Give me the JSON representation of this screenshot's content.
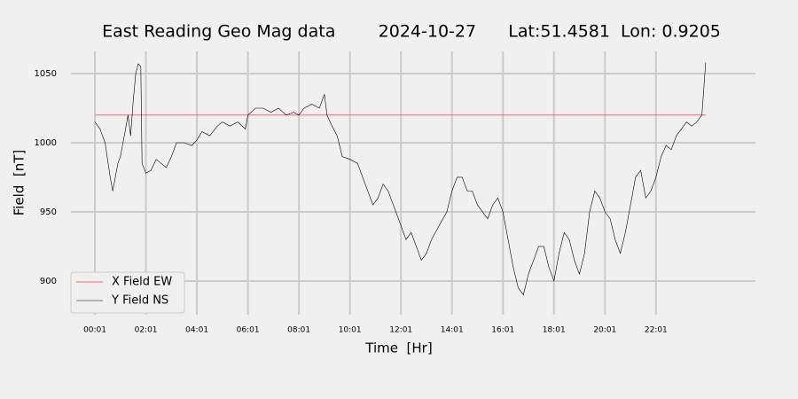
{
  "chart_data": {
    "type": "line",
    "title": "East Reading Geo Mag data        2024-10-27      Lat:51.4581  Lon: 0.9205",
    "xlabel": "Time  [Hr]",
    "ylabel": "Field  [nT]",
    "xlim": [
      -0.94,
      25.9
    ],
    "ylim": [
      875.6,
      1066
    ],
    "xticks": [
      {
        "value": 0,
        "label": "00:01"
      },
      {
        "value": 2,
        "label": "02:01"
      },
      {
        "value": 4,
        "label": "04:01"
      },
      {
        "value": 6,
        "label": "06:01"
      },
      {
        "value": 8,
        "label": "08:01"
      },
      {
        "value": 10,
        "label": "10:01"
      },
      {
        "value": 12,
        "label": "12:01"
      },
      {
        "value": 14,
        "label": "14:01"
      },
      {
        "value": 16,
        "label": "16:01"
      },
      {
        "value": 18,
        "label": "18:01"
      },
      {
        "value": 20,
        "label": "20:01"
      },
      {
        "value": 22,
        "label": "22:01"
      }
    ],
    "yticks": [
      900,
      950,
      1000,
      1050
    ],
    "grid": true,
    "legend": "lower left",
    "series": [
      {
        "name": "X Field EW",
        "color": "#ff6666",
        "x": [
          0,
          23.95
        ],
        "values": [
          1020,
          1020
        ]
      },
      {
        "name": "Y Field NS",
        "color": "#000000",
        "x": [
          0,
          0.2,
          0.4,
          0.6,
          0.7,
          0.9,
          1.0,
          1.1,
          1.2,
          1.3,
          1.4,
          1.5,
          1.6,
          1.7,
          1.8,
          1.85,
          2.0,
          2.2,
          2.4,
          2.6,
          2.8,
          3.0,
          3.2,
          3.5,
          3.8,
          4.0,
          4.2,
          4.5,
          4.8,
          5.0,
          5.3,
          5.6,
          5.9,
          6.0,
          6.3,
          6.6,
          6.9,
          7.2,
          7.5,
          7.8,
          8.0,
          8.2,
          8.5,
          8.8,
          9.0,
          9.1,
          9.3,
          9.5,
          9.7,
          10.0,
          10.3,
          10.5,
          10.7,
          10.9,
          11.1,
          11.3,
          11.5,
          11.7,
          12.0,
          12.2,
          12.4,
          12.6,
          12.8,
          13.0,
          13.2,
          13.5,
          13.8,
          14.0,
          14.2,
          14.4,
          14.6,
          14.8,
          15.0,
          15.2,
          15.4,
          15.6,
          15.8,
          16.0,
          16.2,
          16.4,
          16.6,
          16.8,
          17.0,
          17.2,
          17.4,
          17.6,
          17.8,
          18.0,
          18.2,
          18.4,
          18.6,
          18.8,
          19.0,
          19.2,
          19.4,
          19.6,
          19.8,
          20.0,
          20.2,
          20.4,
          20.6,
          20.8,
          21.0,
          21.2,
          21.4,
          21.6,
          21.8,
          22.0,
          22.2,
          22.4,
          22.6,
          22.8,
          23.0,
          23.2,
          23.4,
          23.6,
          23.8,
          23.95
        ],
        "values": [
          1015,
          1010,
          1000,
          975,
          965,
          985,
          990,
          1000,
          1010,
          1020,
          1005,
          1030,
          1050,
          1057,
          1055,
          985,
          978,
          980,
          988,
          985,
          982,
          990,
          1000,
          1000,
          998,
          1002,
          1008,
          1005,
          1012,
          1015,
          1012,
          1015,
          1010,
          1020,
          1025,
          1025,
          1022,
          1025,
          1020,
          1022,
          1020,
          1025,
          1028,
          1025,
          1035,
          1020,
          1012,
          1005,
          990,
          988,
          985,
          975,
          965,
          955,
          960,
          970,
          965,
          955,
          940,
          930,
          935,
          925,
          915,
          920,
          930,
          940,
          950,
          965,
          975,
          975,
          965,
          965,
          955,
          950,
          945,
          955,
          960,
          950,
          930,
          910,
          895,
          890,
          905,
          915,
          925,
          925,
          910,
          900,
          920,
          935,
          930,
          915,
          905,
          920,
          950,
          965,
          960,
          950,
          945,
          930,
          920,
          935,
          955,
          975,
          980,
          960,
          965,
          975,
          990,
          998,
          995,
          1005,
          1010,
          1015,
          1012,
          1015,
          1020,
          1058
        ]
      }
    ]
  }
}
